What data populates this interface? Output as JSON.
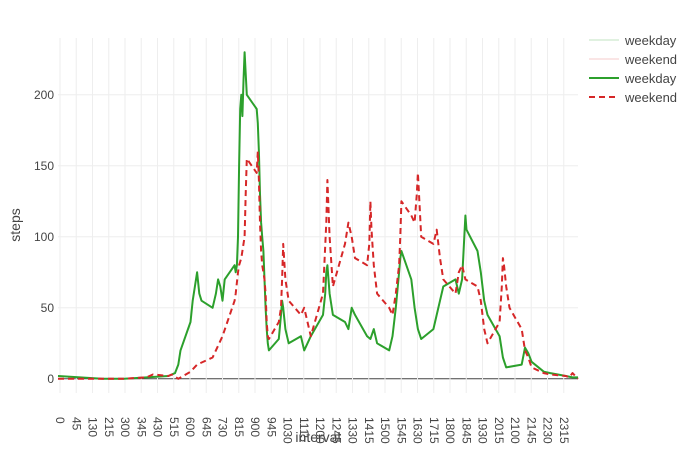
{
  "chart_data": {
    "type": "line",
    "xlabel": "interval",
    "ylabel": "steps",
    "xlim": [
      0,
      2355
    ],
    "ylim": [
      -10,
      240
    ],
    "y_ticks": [
      0,
      50,
      100,
      150,
      200
    ],
    "x_ticks": [
      0,
      45,
      130,
      215,
      300,
      345,
      430,
      515,
      600,
      645,
      730,
      815,
      900,
      945,
      1030,
      1115,
      1200,
      1245,
      1330,
      1415,
      1500,
      1545,
      1630,
      1715,
      1800,
      1845,
      1930,
      2015,
      2100,
      2145,
      2230,
      2315
    ],
    "grid": true,
    "legend_position": "top-right",
    "legend": [
      "weekday",
      "weekend",
      "weekday",
      "weekend"
    ],
    "series": [
      {
        "name": "weekday",
        "color": "#2ca02c",
        "dash": "solid",
        "points": [
          [
            0,
            2
          ],
          [
            100,
            1
          ],
          [
            200,
            0
          ],
          [
            300,
            0
          ],
          [
            400,
            1
          ],
          [
            500,
            2
          ],
          [
            530,
            4
          ],
          [
            545,
            10
          ],
          [
            555,
            20
          ],
          [
            600,
            40
          ],
          [
            610,
            55
          ],
          [
            620,
            65
          ],
          [
            630,
            75
          ],
          [
            640,
            60
          ],
          [
            650,
            55
          ],
          [
            700,
            50
          ],
          [
            715,
            60
          ],
          [
            725,
            70
          ],
          [
            735,
            65
          ],
          [
            745,
            55
          ],
          [
            755,
            70
          ],
          [
            800,
            80
          ],
          [
            805,
            75
          ],
          [
            810,
            80
          ],
          [
            815,
            100
          ],
          [
            820,
            150
          ],
          [
            825,
            190
          ],
          [
            830,
            200
          ],
          [
            835,
            185
          ],
          [
            840,
            210
          ],
          [
            845,
            230
          ],
          [
            850,
            215
          ],
          [
            855,
            200
          ],
          [
            900,
            190
          ],
          [
            905,
            180
          ],
          [
            910,
            160
          ],
          [
            915,
            130
          ],
          [
            920,
            110
          ],
          [
            925,
            100
          ],
          [
            930,
            90
          ],
          [
            935,
            70
          ],
          [
            940,
            50
          ],
          [
            945,
            35
          ],
          [
            950,
            25
          ],
          [
            955,
            20
          ],
          [
            1000,
            28
          ],
          [
            1010,
            45
          ],
          [
            1015,
            55
          ],
          [
            1020,
            50
          ],
          [
            1030,
            35
          ],
          [
            1045,
            25
          ],
          [
            1100,
            30
          ],
          [
            1115,
            20
          ],
          [
            1130,
            25
          ],
          [
            1145,
            30
          ],
          [
            1200,
            45
          ],
          [
            1210,
            60
          ],
          [
            1215,
            75
          ],
          [
            1220,
            80
          ],
          [
            1230,
            60
          ],
          [
            1245,
            45
          ],
          [
            1300,
            40
          ],
          [
            1315,
            35
          ],
          [
            1330,
            50
          ],
          [
            1345,
            45
          ],
          [
            1400,
            30
          ],
          [
            1415,
            28
          ],
          [
            1430,
            35
          ],
          [
            1445,
            25
          ],
          [
            1500,
            20
          ],
          [
            1515,
            30
          ],
          [
            1530,
            50
          ],
          [
            1545,
            75
          ],
          [
            1550,
            85
          ],
          [
            1555,
            90
          ],
          [
            1600,
            70
          ],
          [
            1615,
            50
          ],
          [
            1630,
            35
          ],
          [
            1645,
            28
          ],
          [
            1700,
            35
          ],
          [
            1715,
            45
          ],
          [
            1730,
            55
          ],
          [
            1745,
            65
          ],
          [
            1800,
            70
          ],
          [
            1815,
            60
          ],
          [
            1830,
            70
          ],
          [
            1840,
            100
          ],
          [
            1845,
            115
          ],
          [
            1850,
            105
          ],
          [
            1900,
            90
          ],
          [
            1915,
            75
          ],
          [
            1930,
            55
          ],
          [
            1945,
            45
          ],
          [
            2000,
            30
          ],
          [
            2015,
            15
          ],
          [
            2030,
            8
          ],
          [
            2100,
            10
          ],
          [
            2115,
            22
          ],
          [
            2130,
            18
          ],
          [
            2145,
            12
          ],
          [
            2200,
            5
          ],
          [
            2230,
            4
          ],
          [
            2300,
            2
          ],
          [
            2330,
            1
          ],
          [
            2355,
            1
          ]
        ]
      },
      {
        "name": "weekend",
        "color": "#d62728",
        "dash": "dashed",
        "points": [
          [
            0,
            0
          ],
          [
            100,
            0
          ],
          [
            200,
            0
          ],
          [
            300,
            0
          ],
          [
            400,
            1
          ],
          [
            430,
            3
          ],
          [
            500,
            2
          ],
          [
            515,
            3
          ],
          [
            545,
            0
          ],
          [
            600,
            5
          ],
          [
            630,
            10
          ],
          [
            700,
            15
          ],
          [
            715,
            20
          ],
          [
            730,
            25
          ],
          [
            745,
            30
          ],
          [
            800,
            55
          ],
          [
            805,
            60
          ],
          [
            815,
            75
          ],
          [
            820,
            80
          ],
          [
            830,
            85
          ],
          [
            845,
            100
          ],
          [
            850,
            130
          ],
          [
            855,
            155
          ],
          [
            900,
            145
          ],
          [
            905,
            160
          ],
          [
            910,
            140
          ],
          [
            915,
            110
          ],
          [
            920,
            90
          ],
          [
            925,
            80
          ],
          [
            930,
            75
          ],
          [
            935,
            70
          ],
          [
            940,
            60
          ],
          [
            945,
            40
          ],
          [
            950,
            30
          ],
          [
            955,
            28
          ],
          [
            1000,
            40
          ],
          [
            1010,
            50
          ],
          [
            1015,
            70
          ],
          [
            1020,
            95
          ],
          [
            1030,
            70
          ],
          [
            1045,
            55
          ],
          [
            1100,
            45
          ],
          [
            1115,
            50
          ],
          [
            1130,
            40
          ],
          [
            1145,
            30
          ],
          [
            1200,
            60
          ],
          [
            1215,
            110
          ],
          [
            1220,
            140
          ],
          [
            1230,
            100
          ],
          [
            1245,
            65
          ],
          [
            1300,
            95
          ],
          [
            1315,
            110
          ],
          [
            1330,
            100
          ],
          [
            1345,
            85
          ],
          [
            1400,
            80
          ],
          [
            1410,
            95
          ],
          [
            1415,
            125
          ],
          [
            1420,
            105
          ],
          [
            1430,
            80
          ],
          [
            1445,
            60
          ],
          [
            1500,
            50
          ],
          [
            1515,
            45
          ],
          [
            1530,
            60
          ],
          [
            1545,
            80
          ],
          [
            1550,
            100
          ],
          [
            1555,
            125
          ],
          [
            1600,
            115
          ],
          [
            1615,
            110
          ],
          [
            1625,
            130
          ],
          [
            1630,
            145
          ],
          [
            1635,
            130
          ],
          [
            1645,
            100
          ],
          [
            1700,
            95
          ],
          [
            1715,
            105
          ],
          [
            1730,
            85
          ],
          [
            1745,
            70
          ],
          [
            1800,
            60
          ],
          [
            1815,
            75
          ],
          [
            1830,
            80
          ],
          [
            1845,
            70
          ],
          [
            1900,
            65
          ],
          [
            1915,
            55
          ],
          [
            1930,
            35
          ],
          [
            1945,
            25
          ],
          [
            2000,
            40
          ],
          [
            2010,
            65
          ],
          [
            2015,
            85
          ],
          [
            2020,
            80
          ],
          [
            2030,
            65
          ],
          [
            2045,
            50
          ],
          [
            2100,
            35
          ],
          [
            2115,
            20
          ],
          [
            2130,
            15
          ],
          [
            2145,
            8
          ],
          [
            2200,
            4
          ],
          [
            2230,
            3
          ],
          [
            2300,
            2
          ],
          [
            2315,
            1
          ],
          [
            2330,
            4
          ],
          [
            2355,
            0
          ]
        ]
      }
    ]
  }
}
